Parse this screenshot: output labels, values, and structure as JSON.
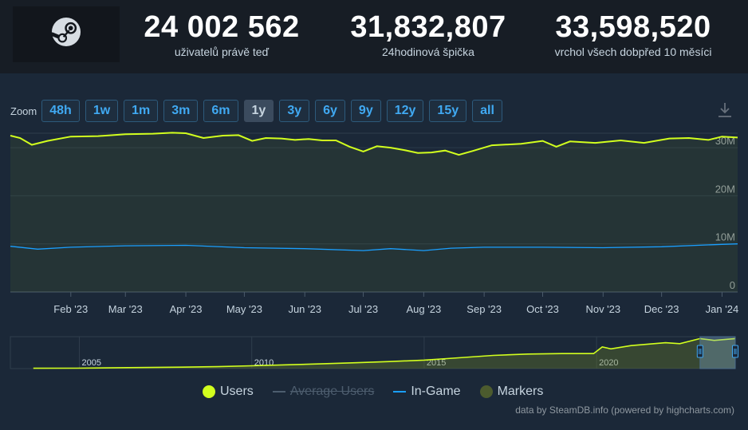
{
  "stats": [
    {
      "value": "24 002 562",
      "label": "uživatelů právě teď"
    },
    {
      "value": "31,832,807",
      "label": "24hodinová špička"
    },
    {
      "value": "33,598,520",
      "label": "vrchol všech dobpřed 10 měsíci"
    }
  ],
  "zoom": {
    "label": "Zoom",
    "buttons": [
      "48h",
      "1w",
      "1m",
      "3m",
      "6m",
      "1y",
      "3y",
      "6y",
      "9y",
      "12y",
      "15y",
      "all"
    ],
    "active": "1y"
  },
  "colors": {
    "users": "#d2ff1e",
    "in_game": "#1a9fff",
    "markers": "#4c5b2e",
    "grid": "#2a3a4a"
  },
  "icons": {
    "logo": "steam-icon",
    "export": "download-icon"
  },
  "legend": [
    {
      "label": "Users",
      "style": "dot",
      "color": "#d2ff1e",
      "disabled": false
    },
    {
      "label": "Average Users",
      "style": "dash",
      "color": "#4d5d6e",
      "disabled": true
    },
    {
      "label": "In-Game",
      "style": "dash",
      "color": "#1a9fff",
      "disabled": false
    },
    {
      "label": "Markers",
      "style": "dot",
      "color": "#4c5b2e",
      "disabled": false
    }
  ],
  "credit": "data by SteamDB.info (powered by highcharts.com)",
  "chart_data": [
    {
      "type": "line",
      "x_range": [
        "2023-01-01",
        "2024-01-09"
      ],
      "xticks": [
        "Feb '23",
        "Mar '23",
        "Apr '23",
        "May '23",
        "Jun '23",
        "Jul '23",
        "Aug '23",
        "Sep '23",
        "Oct '23",
        "Nov '23",
        "Dec '23",
        "Jan '24"
      ],
      "yticks": [
        "0",
        "10M",
        "20M",
        "30M"
      ],
      "ylim": [
        0,
        33000000
      ],
      "grid": true,
      "legend_position": "bottom",
      "series": [
        {
          "name": "Users",
          "x": [
            "2023-01-01",
            "2023-01-06",
            "2023-01-12",
            "2023-01-20",
            "2023-02-01",
            "2023-02-15",
            "2023-03-01",
            "2023-03-15",
            "2023-03-25",
            "2023-04-01",
            "2023-04-10",
            "2023-04-20",
            "2023-04-28",
            "2023-05-05",
            "2023-05-12",
            "2023-05-20",
            "2023-05-27",
            "2023-06-03",
            "2023-06-10",
            "2023-06-17",
            "2023-06-24",
            "2023-07-01",
            "2023-07-08",
            "2023-07-15",
            "2023-07-22",
            "2023-07-29",
            "2023-08-05",
            "2023-08-12",
            "2023-08-19",
            "2023-08-26",
            "2023-09-05",
            "2023-09-20",
            "2023-10-01",
            "2023-10-08",
            "2023-10-15",
            "2023-10-28",
            "2023-11-10",
            "2023-11-22",
            "2023-12-05",
            "2023-12-15",
            "2023-12-25",
            "2024-01-01",
            "2024-01-09"
          ],
          "values": [
            32500000,
            32000000,
            30600000,
            31400000,
            32300000,
            32400000,
            32800000,
            32900000,
            33100000,
            33000000,
            32000000,
            32500000,
            32600000,
            31400000,
            32000000,
            31900000,
            31600000,
            31800000,
            31500000,
            31500000,
            30200000,
            29200000,
            30300000,
            30000000,
            29500000,
            28900000,
            29000000,
            29400000,
            28500000,
            29300000,
            30500000,
            30800000,
            31400000,
            30200000,
            31300000,
            31000000,
            31500000,
            31000000,
            31900000,
            32000000,
            31600000,
            32300000,
            32100000
          ]
        },
        {
          "name": "In-Game",
          "x": [
            "2023-01-01",
            "2023-01-15",
            "2023-02-01",
            "2023-03-01",
            "2023-04-01",
            "2023-05-01",
            "2023-06-01",
            "2023-07-01",
            "2023-07-15",
            "2023-08-01",
            "2023-08-15",
            "2023-09-01",
            "2023-10-01",
            "2023-11-01",
            "2023-12-01",
            "2024-01-01",
            "2024-01-09"
          ],
          "values": [
            9500000,
            8900000,
            9300000,
            9600000,
            9700000,
            9200000,
            9000000,
            8600000,
            9000000,
            8600000,
            9100000,
            9300000,
            9300000,
            9200000,
            9400000,
            9900000,
            10000000
          ]
        }
      ]
    },
    {
      "type": "area",
      "x_range": [
        "2003-01-01",
        "2024-01-09"
      ],
      "xticks": [
        "2005",
        "2010",
        "2015",
        "2020"
      ],
      "ylim": [
        0,
        34000000
      ],
      "series": [
        {
          "name": "Users",
          "x": [
            "2003-09-01",
            "2004-12-01",
            "2006-06-01",
            "2008-01-01",
            "2009-01-01",
            "2010-01-01",
            "2011-01-01",
            "2012-01-01",
            "2013-01-01",
            "2014-01-01",
            "2015-01-01",
            "2016-01-01",
            "2017-01-01",
            "2018-01-01",
            "2019-01-01",
            "2019-12-01",
            "2020-03-01",
            "2020-06-01",
            "2021-01-01",
            "2022-01-01",
            "2022-06-01",
            "2023-01-01",
            "2023-06-01",
            "2024-01-09"
          ],
          "values": [
            300000,
            400000,
            1000000,
            1500000,
            2000000,
            3000000,
            4000000,
            5000000,
            6200000,
            7500000,
            9000000,
            11500000,
            14000000,
            15500000,
            16000000,
            16000000,
            23000000,
            21000000,
            24500000,
            27500000,
            26500000,
            32000000,
            30000000,
            32000000
          ]
        }
      ],
      "navigator_window": [
        "2023-01-01",
        "2024-01-09"
      ]
    }
  ]
}
